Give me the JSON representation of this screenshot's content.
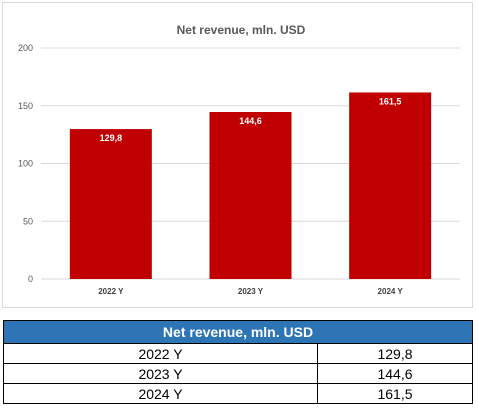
{
  "chart_data": {
    "type": "bar",
    "title": "Net revenue, mln. USD",
    "categories": [
      "2022 Y",
      "2023 Y",
      "2024 Y"
    ],
    "values": [
      129.8,
      144.6,
      161.5
    ],
    "value_labels": [
      "129,8",
      "144,6",
      "161,5"
    ],
    "yticks": [
      "0",
      "50",
      "100",
      "150",
      "200"
    ],
    "ylim": [
      0,
      200
    ],
    "xlabel": "",
    "ylabel": "",
    "grid": true,
    "bar_color": "#c00000",
    "legend": "none"
  },
  "table": {
    "header": "Net revenue, mln. USD",
    "rows": [
      {
        "year": "2022 Y",
        "value": "129,8"
      },
      {
        "year": "2023 Y",
        "value": "144,6"
      },
      {
        "year": "2024 Y",
        "value": "161,5"
      }
    ],
    "header_color": "#2e75b6"
  }
}
